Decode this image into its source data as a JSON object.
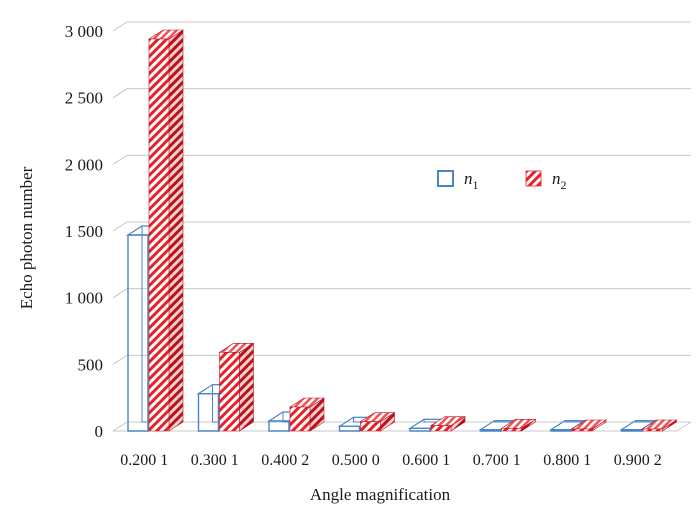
{
  "chart_data": {
    "type": "bar",
    "style": "3d-clustered-column",
    "categories": [
      "0.200 1",
      "0.300 1",
      "0.400 2",
      "0.500 0",
      "0.600 1",
      "0.700 1",
      "0.800 1",
      "0.900 2"
    ],
    "series": [
      {
        "name": "n",
        "subscript": "1",
        "values": [
          1470,
          280,
          75,
          35,
          20,
          10,
          10,
          10
        ],
        "color": "#4a86c5",
        "fill": "outline"
      },
      {
        "name": "n",
        "subscript": "2",
        "values": [
          2940,
          590,
          180,
          70,
          40,
          20,
          15,
          15
        ],
        "color": "#e8202a",
        "fill": "diagonal-hatch"
      }
    ],
    "xlabel": "Angle magnification",
    "ylabel": "Echo photon number",
    "ylim": [
      0,
      3000
    ],
    "yticks": [
      0,
      500,
      1000,
      1500,
      2000,
      2500,
      3000
    ],
    "ytick_labels": [
      "0",
      "500",
      "1 000",
      "1 500",
      "2 000",
      "2 500",
      "3 000"
    ],
    "grid": true,
    "legend": "upper-right-inside"
  }
}
